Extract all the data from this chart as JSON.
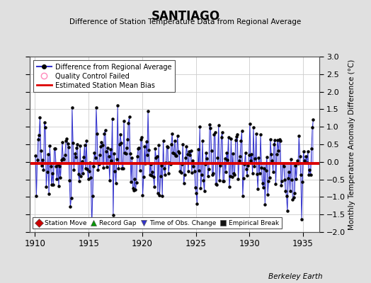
{
  "title": "SANTIAGO",
  "subtitle": "Difference of Station Temperature Data from Regional Average",
  "ylabel": "Monthly Temperature Anomaly Difference (°C)",
  "xlabel_bottom": "Berkeley Earth",
  "xlim": [
    1909.5,
    1936.5
  ],
  "ylim": [
    -2.0,
    3.0
  ],
  "yticks": [
    -2.0,
    -1.5,
    -1.0,
    -0.5,
    0.0,
    0.5,
    1.0,
    1.5,
    2.0,
    2.5,
    3.0
  ],
  "xticks": [
    1910,
    1915,
    1920,
    1925,
    1930,
    1935
  ],
  "bias_level": -0.05,
  "line_color": "#3333cc",
  "line_color_fill": "#9999ee",
  "bias_color": "#dd0000",
  "background_color": "#e0e0e0",
  "plot_bg_color": "#ffffff",
  "grid_color": "#cccccc",
  "seed": 42
}
